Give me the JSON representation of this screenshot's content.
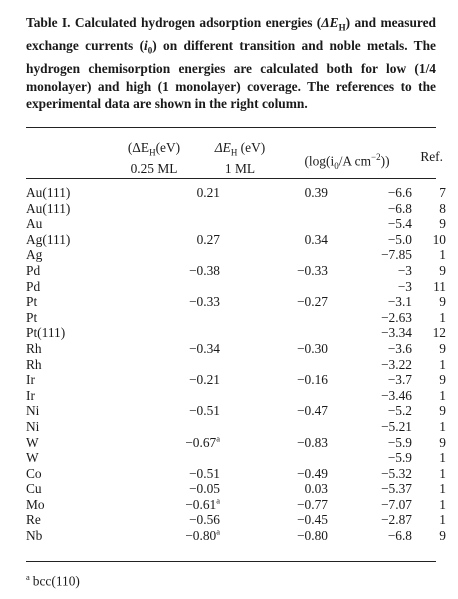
{
  "caption": "Table I. Calculated hydrogen adsorption energies (ΔEʜ) and measured exchange currents (i₀) on different transition and noble metals. The hydrogen chemisorption energies are calculated both for low (1/4 monolayer) and high (1 monolayer) coverage. The references to the experimental data are shown in the right column.",
  "caption_parts": {
    "pre": "Table I. Calculated hydrogen adsorption energies (",
    "dE": "ΔE",
    "dE_sub": "H",
    "mid": ") and measured exchange currents (",
    "i0": "i",
    "i0_sub": "0",
    "post": ") on different transition and noble metals. The hydrogen chemisorption energies are calculated both for low (1/4 monolayer) and high (1 monolayer) coverage. The references to the experimental data are shown in the right column."
  },
  "headers": {
    "low_line1_pre": "(ΔE",
    "low_line1_sub": "H",
    "low_line1_post": "(eV)",
    "low_line2": "0.25 ML",
    "high_line1_pre": "ΔE",
    "high_line1_sub": "H",
    "high_line1_post": " (eV)",
    "high_line2": "1 ML",
    "log_pre": "(log(i",
    "log_sub": "0",
    "log_mid": "/A cm",
    "log_sup": "−2",
    "log_post": "))",
    "ref": "Ref."
  },
  "rows": [
    {
      "metal": "Au(111)",
      "low": "0.21",
      "low_fn": "",
      "high": "0.39",
      "log": "−6.6",
      "ref": "7"
    },
    {
      "metal": "Au(111)",
      "low": "",
      "low_fn": "",
      "high": "",
      "log": "−6.8",
      "ref": "8"
    },
    {
      "metal": "Au",
      "low": "",
      "low_fn": "",
      "high": "",
      "log": "−5.4",
      "ref": "9"
    },
    {
      "metal": "Ag(111)",
      "low": "0.27",
      "low_fn": "",
      "high": "0.34",
      "log": "−5.0",
      "ref": "10"
    },
    {
      "metal": "Ag",
      "low": "",
      "low_fn": "",
      "high": "",
      "log": "−7.85",
      "ref": "1"
    },
    {
      "metal": "Pd",
      "low": "−0.38",
      "low_fn": "",
      "high": "−0.33",
      "log": "−3",
      "ref": "9"
    },
    {
      "metal": "Pd",
      "low": "",
      "low_fn": "",
      "high": "",
      "log": "−3",
      "ref": "11"
    },
    {
      "metal": "Pt",
      "low": "−0.33",
      "low_fn": "",
      "high": "−0.27",
      "log": "−3.1",
      "ref": "9"
    },
    {
      "metal": "Pt",
      "low": "",
      "low_fn": "",
      "high": "",
      "log": "−2.63",
      "ref": "1"
    },
    {
      "metal": "Pt(111)",
      "low": "",
      "low_fn": "",
      "high": "",
      "log": "−3.34",
      "ref": "12"
    },
    {
      "metal": "Rh",
      "low": "−0.34",
      "low_fn": "",
      "high": "−0.30",
      "log": "−3.6",
      "ref": "9"
    },
    {
      "metal": "Rh",
      "low": "",
      "low_fn": "",
      "high": "",
      "log": "−3.22",
      "ref": "1"
    },
    {
      "metal": "Ir",
      "low": "−0.21",
      "low_fn": "",
      "high": "−0.16",
      "log": "−3.7",
      "ref": "9"
    },
    {
      "metal": "Ir",
      "low": "",
      "low_fn": "",
      "high": "",
      "log": "−3.46",
      "ref": "1"
    },
    {
      "metal": "Ni",
      "low": "−0.51",
      "low_fn": "",
      "high": "−0.47",
      "log": "−5.2",
      "ref": "9"
    },
    {
      "metal": "Ni",
      "low": "",
      "low_fn": "",
      "high": "",
      "log": "−5.21",
      "ref": "1"
    },
    {
      "metal": "W",
      "low": "−0.67",
      "low_fn": "a",
      "high": "−0.83",
      "log": "−5.9",
      "ref": "9"
    },
    {
      "metal": "W",
      "low": "",
      "low_fn": "",
      "high": "",
      "log": "−5.9",
      "ref": "1"
    },
    {
      "metal": "Co",
      "low": "−0.51",
      "low_fn": "",
      "high": "−0.49",
      "log": "−5.32",
      "ref": "1"
    },
    {
      "metal": "Cu",
      "low": "−0.05",
      "low_fn": "",
      "high": "0.03",
      "log": "−5.37",
      "ref": "1"
    },
    {
      "metal": "Mo",
      "low": "−0.61",
      "low_fn": "a",
      "high": "−0.77",
      "log": "−7.07",
      "ref": "1"
    },
    {
      "metal": "Re",
      "low": "−0.56",
      "low_fn": "",
      "high": "−0.45",
      "log": "−2.87",
      "ref": "1"
    },
    {
      "metal": "Nb",
      "low": "−0.80",
      "low_fn": "a",
      "high": "−0.80",
      "log": "−6.8",
      "ref": "9"
    }
  ],
  "footnote": {
    "mark": "a",
    "text": "bcc(110)"
  }
}
